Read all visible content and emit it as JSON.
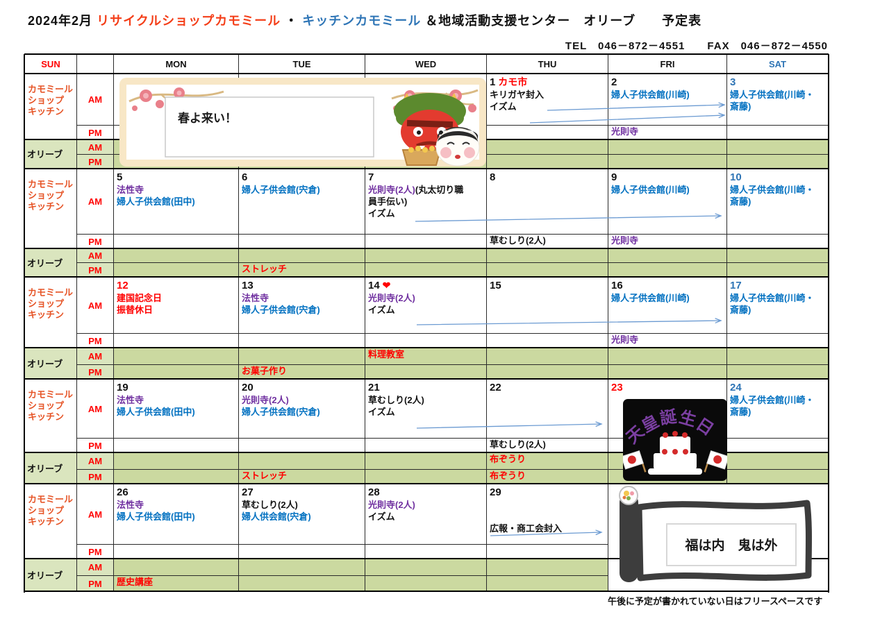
{
  "header": {
    "month": "2024年2月",
    "shop_name": "リサイクルショップカモミール",
    "dot": "・",
    "kitchen_name": "キッチンカモミール",
    "rest": "＆地域活動支援センター　オリーブ　　予定表",
    "contact": "TEL　046－872－4551　　FAX　046－872－4550"
  },
  "footnote": "午後に予定が書かれていない日はフリースペースです",
  "palette": {
    "red": "#FF0000",
    "blue": "#0070C0",
    "purple": "#7030A0",
    "black": "#111111",
    "satBlue": "#2E74B5",
    "labelOrange": "#E65426",
    "green": "#CBD9A0",
    "lightGreen": "#DAE5BE"
  },
  "calendar": {
    "day_headers": [
      {
        "label": "SUN",
        "c": "red"
      },
      {
        "label": "",
        "c": "black"
      },
      {
        "label": "MON",
        "c": "black"
      },
      {
        "label": "TUE",
        "c": "black"
      },
      {
        "label": "WED",
        "c": "black"
      },
      {
        "label": "THU",
        "c": "black"
      },
      {
        "label": "FRI",
        "c": "black"
      },
      {
        "label": "SAT",
        "c": "satBlue"
      }
    ],
    "row_labels": {
      "shop_lines": [
        "カモミール",
        "ショップ",
        "キッチン"
      ],
      "olive": "オリーブ",
      "am": "AM",
      "pm": "PM"
    },
    "weeks": [
      {
        "days": {
          "mon": {},
          "tue": {},
          "wed": {},
          "thu": {
            "num": "1",
            "numC": "black",
            "numExtra": {
              "t": "カモ市",
              "c": "red"
            },
            "am": [
              [
                {
                  "t": "キリガヤ封入",
                  "c": "black"
                }
              ],
              [
                {
                  "t": "イズム",
                  "c": "black"
                }
              ]
            ]
          },
          "fri": {
            "num": "2",
            "numC": "black",
            "am": [
              [
                {
                  "t": "婦人子供会館(川崎)",
                  "c": "blue"
                }
              ]
            ],
            "pm": [
              [
                {
                  "t": "光則寺",
                  "c": "purple"
                }
              ]
            ]
          },
          "sat": {
            "num": "3",
            "numC": "satBlue",
            "am": [
              [
                {
                  "t": "婦人子供会館(川崎・",
                  "c": "blue"
                }
              ],
              [
                {
                  "t": "斎藤)",
                  "c": "blue"
                }
              ]
            ],
            "diag": [
              "oam",
              "opm"
            ]
          }
        }
      },
      {
        "days": {
          "mon": {
            "num": "5",
            "numC": "black",
            "am": [
              [
                {
                  "t": "法性寺",
                  "c": "purple"
                }
              ],
              [
                {
                  "t": "婦人子供会館(田中)",
                  "c": "blue"
                }
              ]
            ]
          },
          "tue": {
            "num": "6",
            "numC": "black",
            "am": [
              [
                {
                  "t": "婦人子供会館(宍倉)",
                  "c": "blue"
                }
              ]
            ],
            "opm": [
              [
                {
                  "t": "ストレッチ",
                  "c": "red"
                }
              ]
            ]
          },
          "wed": {
            "num": "7",
            "numC": "black",
            "am": [
              [
                {
                  "t": "光則寺(2人)",
                  "c": "purple"
                },
                {
                  "t": "(丸太切り職",
                  "c": "black"
                }
              ],
              [
                {
                  "t": "員手伝い)",
                  "c": "black"
                }
              ],
              [
                {
                  "t": "イズム",
                  "c": "black"
                }
              ]
            ],
            "diag": [
              "opm"
            ]
          },
          "thu": {
            "num": "8",
            "numC": "black",
            "pm": [
              [
                {
                  "t": "草むしり(2人)",
                  "c": "black"
                }
              ]
            ]
          },
          "fri": {
            "num": "9",
            "numC": "black",
            "am": [
              [
                {
                  "t": "婦人子供会館(川崎)",
                  "c": "blue"
                }
              ]
            ],
            "pm": [
              [
                {
                  "t": "光則寺",
                  "c": "purple"
                }
              ]
            ]
          },
          "sat": {
            "num": "10",
            "numC": "satBlue",
            "am": [
              [
                {
                  "t": "婦人子供会館(川崎・",
                  "c": "blue"
                }
              ],
              [
                {
                  "t": "斎藤)",
                  "c": "blue"
                }
              ]
            ],
            "diag": [
              "oam",
              "opm"
            ]
          }
        }
      },
      {
        "days": {
          "mon": {
            "num": "12",
            "numC": "red",
            "am": [
              [
                {
                  "t": "建国記念日",
                  "c": "red"
                }
              ],
              [
                {
                  "t": "振替休日",
                  "c": "red"
                }
              ]
            ],
            "diag": [
              "oam",
              "opm"
            ]
          },
          "tue": {
            "num": "13",
            "numC": "black",
            "am": [
              [
                {
                  "t": "法性寺",
                  "c": "purple"
                }
              ],
              [
                {
                  "t": "婦人子供会館(宍倉)",
                  "c": "blue"
                }
              ]
            ],
            "opm": [
              [
                {
                  "t": "お菓子作り",
                  "c": "red"
                }
              ]
            ]
          },
          "wed": {
            "num": "14",
            "numC": "black",
            "numExtra": {
              "t": "❤",
              "c": "red"
            },
            "am": [
              [
                {
                  "t": "光則寺(2人)",
                  "c": "purple"
                }
              ],
              [
                {
                  "t": "イズム",
                  "c": "black"
                }
              ]
            ],
            "oam": [
              [
                {
                  "t": "料理教室",
                  "c": "red"
                }
              ]
            ]
          },
          "thu": {
            "num": "15",
            "numC": "black"
          },
          "fri": {
            "num": "16",
            "numC": "black",
            "am": [
              [
                {
                  "t": "婦人子供会館(川崎)",
                  "c": "blue"
                }
              ]
            ],
            "pm": [
              [
                {
                  "t": "光則寺",
                  "c": "purple"
                }
              ]
            ]
          },
          "sat": {
            "num": "17",
            "numC": "satBlue",
            "am": [
              [
                {
                  "t": "婦人子供会館(川崎・",
                  "c": "blue"
                }
              ],
              [
                {
                  "t": "斎藤)",
                  "c": "blue"
                }
              ]
            ],
            "diag": [
              "oam",
              "opm"
            ]
          }
        }
      },
      {
        "days": {
          "mon": {
            "num": "19",
            "numC": "black",
            "am": [
              [
                {
                  "t": "法性寺",
                  "c": "purple"
                }
              ],
              [
                {
                  "t": "婦人子供会館(田中)",
                  "c": "blue"
                }
              ]
            ]
          },
          "tue": {
            "num": "20",
            "numC": "black",
            "am": [
              [
                {
                  "t": "光則寺(2人)",
                  "c": "purple"
                }
              ],
              [
                {
                  "t": "婦人子供会館(宍倉)",
                  "c": "blue"
                }
              ]
            ],
            "opm": [
              [
                {
                  "t": "ストレッチ",
                  "c": "red"
                }
              ]
            ]
          },
          "wed": {
            "num": "21",
            "numC": "black",
            "am": [
              [
                {
                  "t": "草むしり(2人)",
                  "c": "black"
                }
              ],
              [
                {
                  "t": "イズム",
                  "c": "black"
                }
              ]
            ],
            "diag": [
              "opm"
            ]
          },
          "thu": {
            "num": "22",
            "numC": "black",
            "pm": [
              [
                {
                  "t": "草むしり(2人)",
                  "c": "black"
                }
              ]
            ],
            "oam": [
              [
                {
                  "t": "布ぞうり",
                  "c": "red"
                }
              ]
            ],
            "opm": [
              [
                {
                  "t": "布ぞうり",
                  "c": "red"
                }
              ]
            ]
          },
          "fri": {
            "num": "23",
            "numC": "red"
          },
          "sat": {
            "num": "24",
            "numC": "satBlue",
            "am": [
              [
                {
                  "t": "婦人子供会館(川崎・",
                  "c": "blue"
                }
              ],
              [
                {
                  "t": "斎藤)",
                  "c": "blue"
                }
              ]
            ],
            "diag": [
              "oam",
              "opm"
            ]
          }
        }
      },
      {
        "merged_frisat": true,
        "days": {
          "mon": {
            "num": "26",
            "numC": "black",
            "am": [
              [
                {
                  "t": "法性寺",
                  "c": "purple"
                }
              ],
              [
                {
                  "t": "婦人子供会館(田中)",
                  "c": "blue"
                }
              ]
            ],
            "opm": [
              [
                {
                  "t": "歴史講座",
                  "c": "red"
                }
              ]
            ]
          },
          "tue": {
            "num": "27",
            "numC": "black",
            "am": [
              [
                {
                  "t": "草むしり(2人)",
                  "c": "black"
                }
              ],
              [
                {
                  "t": "婦人供会館(宍倉)",
                  "c": "blue"
                }
              ]
            ]
          },
          "wed": {
            "num": "28",
            "numC": "black",
            "am": [
              [
                {
                  "t": "光則寺(2人)",
                  "c": "purple"
                }
              ],
              [
                {
                  "t": "イズム",
                  "c": "black"
                }
              ]
            ],
            "diag": [
              "opm"
            ]
          },
          "thu": {
            "num": "29",
            "numC": "black",
            "am": [
              [
                {
                  "t": "",
                  "c": "black"
                }
              ],
              [
                {
                  "t": "",
                  "c": "black"
                }
              ],
              [
                {
                  "t": "広報・商工会封入",
                  "c": "black"
                }
              ]
            ]
          }
        }
      }
    ]
  },
  "banner": {
    "text": "春よ来い！"
  },
  "emperor_birthday": {
    "text": "天皇誕生日"
  },
  "setsubun_scroll": {
    "text": "福は内　鬼は外"
  }
}
